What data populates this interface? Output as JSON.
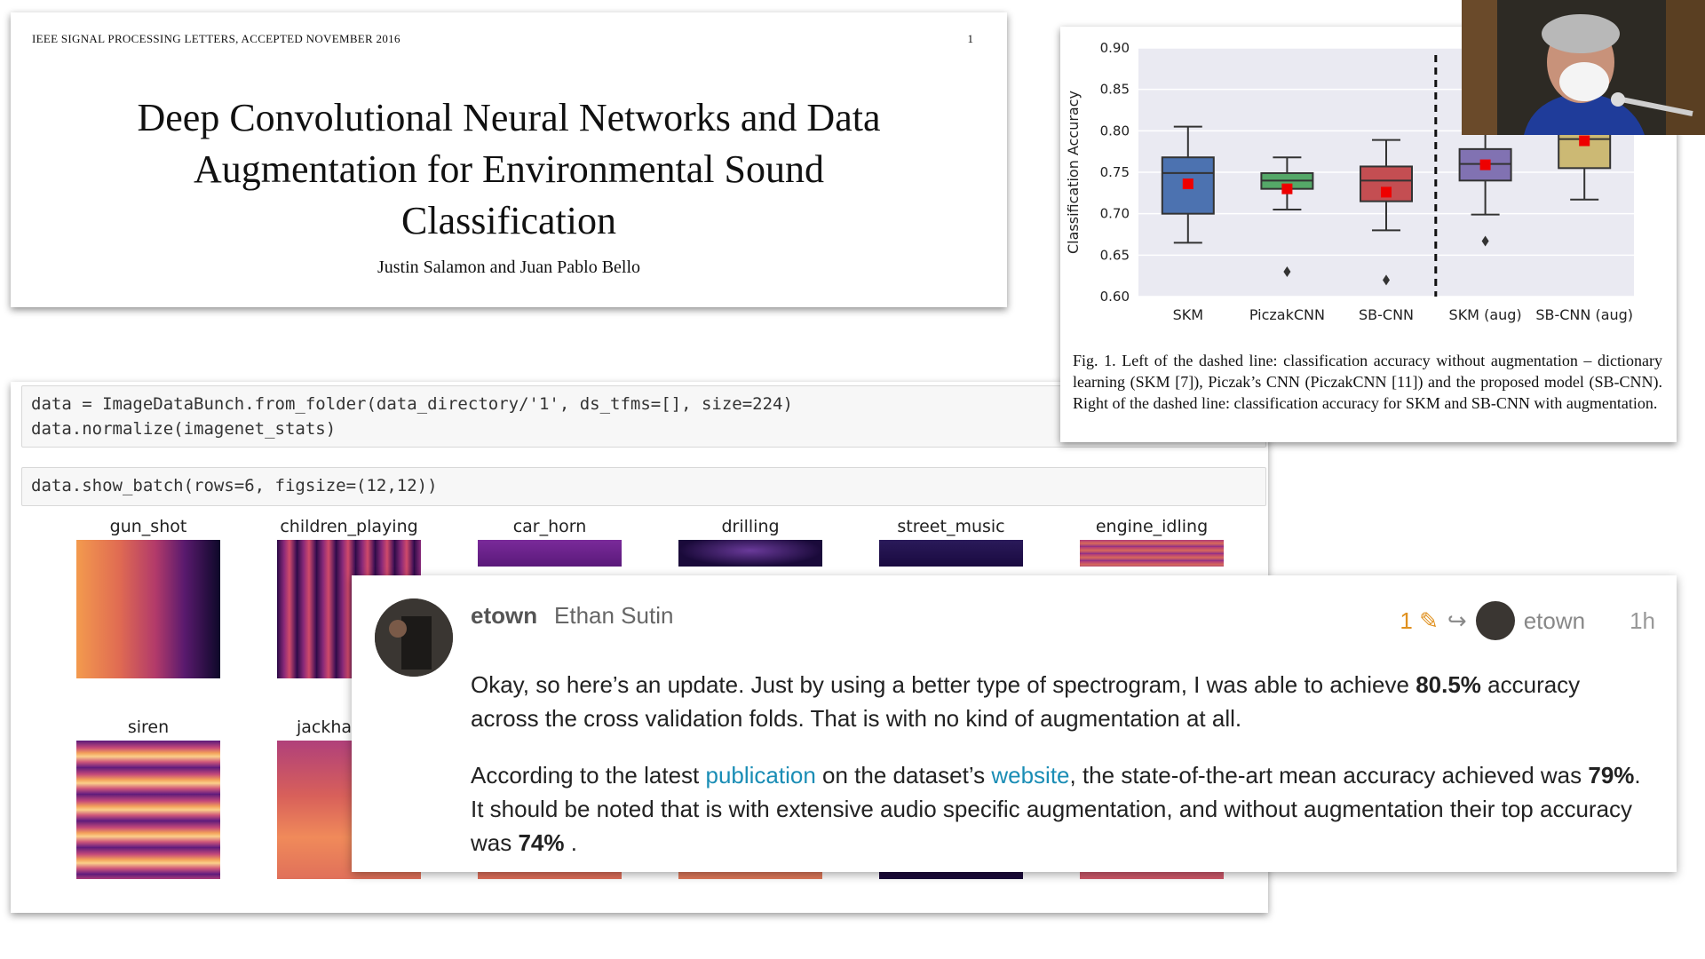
{
  "paper": {
    "header": "IEEE SIGNAL PROCESSING LETTERS, ACCEPTED NOVEMBER 2016",
    "page_number": "1",
    "title_line1": "Deep Convolutional Neural Networks and Data",
    "title_line2": "Augmentation for Environmental Sound",
    "title_line3": "Classification",
    "authors": "Justin Salamon and Juan Pablo Bello"
  },
  "notebook": {
    "cell1_line1": "data = ImageDataBunch.from_folder(data_directory/'1', ds_tfms=[], size=224)",
    "cell1_line2": "data.normalize(imagenet_stats)",
    "cell2": "data.show_batch(rows=6, figsize=(12,12))",
    "thumb_labels": [
      "gun_shot",
      "children_playing",
      "car_horn",
      "drilling",
      "street_music",
      "engine_idling",
      "siren",
      "jackha"
    ]
  },
  "chart_data": {
    "type": "box",
    "categories": [
      "SKM",
      "PiczakCNN",
      "SB-CNN",
      "SKM (aug)",
      "SB-CNN (aug)"
    ],
    "ylabel": "Classification Accuracy",
    "ylim": [
      0.6,
      0.9
    ],
    "yticks": [
      "0.90",
      "0.85",
      "0.80",
      "0.75",
      "0.70",
      "0.65",
      "0.60"
    ],
    "boxes": [
      {
        "whisker_low": 0.665,
        "q1": 0.7,
        "median": 0.749,
        "q3": 0.768,
        "whisker_high": 0.805,
        "mean": 0.736,
        "outliers": [],
        "color": "#4c72b0"
      },
      {
        "whisker_low": 0.705,
        "q1": 0.73,
        "median": 0.74,
        "q3": 0.749,
        "whisker_high": 0.768,
        "mean": 0.73,
        "outliers": [
          0.63
        ],
        "color": "#55a868"
      },
      {
        "whisker_low": 0.68,
        "q1": 0.715,
        "median": 0.74,
        "q3": 0.757,
        "whisker_high": 0.789,
        "mean": 0.726,
        "outliers": [
          0.62
        ],
        "color": "#c44e52"
      },
      {
        "whisker_low": 0.699,
        "q1": 0.74,
        "median": 0.76,
        "q3": 0.778,
        "whisker_high": 0.8,
        "mean": 0.759,
        "outliers": [
          0.667
        ],
        "color": "#8172b2"
      },
      {
        "whisker_low": 0.717,
        "q1": 0.755,
        "median": 0.79,
        "q3": 0.8,
        "whisker_high": 0.81,
        "mean": 0.788,
        "outliers": [],
        "color": "#ccb974"
      }
    ],
    "dashed_divider_after": "SB-CNN",
    "grid": true,
    "mean_marker_color": "#ee0000"
  },
  "caption": {
    "text": "Fig. 1.  Left of the dashed line: classification accuracy without augmentation – dictionary learning (SKM [7]), Piczak’s CNN (PiczakCNN [11]) and the proposed model (SB-CNN). Right of the dashed line: classification accuracy for SKM and SB-CNN with augmentation."
  },
  "post": {
    "username": "etown",
    "full_name": "Ethan Sutin",
    "edit_count": "1",
    "reply_to_user": "etown",
    "time_ago": "1h",
    "p1_a": "Okay, so here’s an update. Just by using a better type of spectrogram, I was able to achieve ",
    "p1_b": "80.5%",
    "p1_c": " accuracy across the cross validation folds. That is with no kind of augmentation at all.",
    "p2_a": "According to the latest ",
    "p2_link1": "publication",
    "p2_b": " on the dataset’s ",
    "p2_link2": "website",
    "p2_c": ", the state-of-the-art mean accuracy achieved was ",
    "p2_d": "79%",
    "p2_e": ". It should be noted that is with extensive audio specific augmentation, and without augmentation their top accuracy was ",
    "p2_f": "74%",
    "p2_g": " ."
  },
  "colors": {
    "link": "#1a8db5",
    "edit_accent": "#e0911f"
  }
}
